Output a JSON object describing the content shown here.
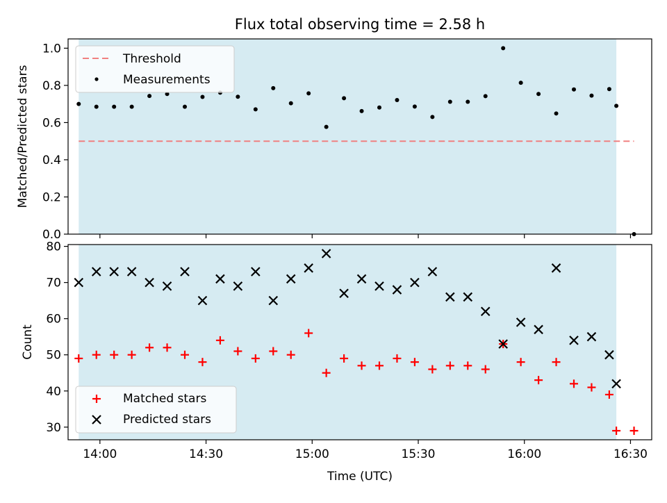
{
  "chart_data": [
    {
      "type": "scatter",
      "title": "Flux total observing time = 2.58 h",
      "ylabel": "Matched/Predicted stars",
      "xlim": [
        "13:51",
        "16:36"
      ],
      "ylim": [
        0,
        1.05
      ],
      "yticks": [
        "0.0",
        "0.2",
        "0.4",
        "0.6",
        "0.8",
        "1.0"
      ],
      "shaded_range": [
        "13:54",
        "16:26"
      ],
      "shade_color": "#add8e6",
      "legend": {
        "placement": "upper-left",
        "entries": [
          "Threshold",
          "Measurements"
        ]
      },
      "threshold": {
        "name": "Threshold",
        "value": 0.5,
        "x_range": [
          "13:54",
          "16:31"
        ],
        "color": "#f08080"
      },
      "series": [
        {
          "name": "Measurements",
          "color": "#000000",
          "x": [
            "13:54",
            "13:59",
            "14:04",
            "14:09",
            "14:14",
            "14:19",
            "14:24",
            "14:29",
            "14:34",
            "14:39",
            "14:44",
            "14:49",
            "14:54",
            "14:59",
            "15:04",
            "15:09",
            "15:14",
            "15:19",
            "15:24",
            "15:29",
            "15:34",
            "15:39",
            "15:44",
            "15:49",
            "15:54",
            "15:59",
            "16:04",
            "16:09",
            "16:14",
            "16:19",
            "16:24",
            "16:26",
            "16:31"
          ],
          "y": [
            0.7,
            0.685,
            0.685,
            0.685,
            0.743,
            0.754,
            0.685,
            0.738,
            0.761,
            0.739,
            0.671,
            0.785,
            0.704,
            0.757,
            0.577,
            0.731,
            0.662,
            0.681,
            0.721,
            0.686,
            0.63,
            0.712,
            0.712,
            0.742,
            1.0,
            0.814,
            0.754,
            0.649,
            0.778,
            0.745,
            0.78,
            0.69,
            0.0
          ]
        }
      ]
    },
    {
      "type": "scatter",
      "xlabel": "Time (UTC)",
      "ylabel": "Count",
      "xlim": [
        "13:51",
        "16:36"
      ],
      "ylim": [
        26.5,
        80.5
      ],
      "yticks": [
        "30",
        "40",
        "50",
        "60",
        "70",
        "80"
      ],
      "xticks": [
        "14:00",
        "14:30",
        "15:00",
        "15:30",
        "16:00",
        "16:30"
      ],
      "shaded_range": [
        "13:54",
        "16:26"
      ],
      "shade_color": "#add8e6",
      "legend": {
        "placement": "lower-left",
        "entries": [
          "Matched stars",
          "Predicted stars"
        ]
      },
      "series": [
        {
          "name": "Matched stars",
          "marker": "plus",
          "color": "#ff0000",
          "x": [
            "13:54",
            "13:59",
            "14:04",
            "14:09",
            "14:14",
            "14:19",
            "14:24",
            "14:29",
            "14:34",
            "14:39",
            "14:44",
            "14:49",
            "14:54",
            "14:59",
            "15:04",
            "15:09",
            "15:14",
            "15:19",
            "15:24",
            "15:29",
            "15:34",
            "15:39",
            "15:44",
            "15:49",
            "15:54",
            "15:59",
            "16:04",
            "16:09",
            "16:14",
            "16:19",
            "16:24",
            "16:26",
            "16:31"
          ],
          "y": [
            49,
            50,
            50,
            50,
            52,
            52,
            50,
            48,
            54,
            51,
            49,
            51,
            50,
            56,
            45,
            49,
            47,
            47,
            49,
            48,
            46,
            47,
            47,
            46,
            53,
            48,
            43,
            48,
            42,
            41,
            39,
            29,
            29
          ]
        },
        {
          "name": "Predicted stars",
          "marker": "x",
          "color": "#000000",
          "x": [
            "13:54",
            "13:59",
            "14:04",
            "14:09",
            "14:14",
            "14:19",
            "14:24",
            "14:29",
            "14:34",
            "14:39",
            "14:44",
            "14:49",
            "14:54",
            "14:59",
            "15:04",
            "15:09",
            "15:14",
            "15:19",
            "15:24",
            "15:29",
            "15:34",
            "15:39",
            "15:44",
            "15:49",
            "15:54",
            "15:59",
            "16:04",
            "16:09",
            "16:14",
            "16:19",
            "16:24",
            "16:26"
          ],
          "y": [
            70,
            73,
            73,
            73,
            70,
            69,
            73,
            65,
            71,
            69,
            73,
            65,
            71,
            74,
            78,
            67,
            71,
            69,
            68,
            70,
            73,
            66,
            66,
            62,
            53,
            59,
            57,
            74,
            54,
            55,
            50,
            42
          ]
        }
      ]
    }
  ]
}
